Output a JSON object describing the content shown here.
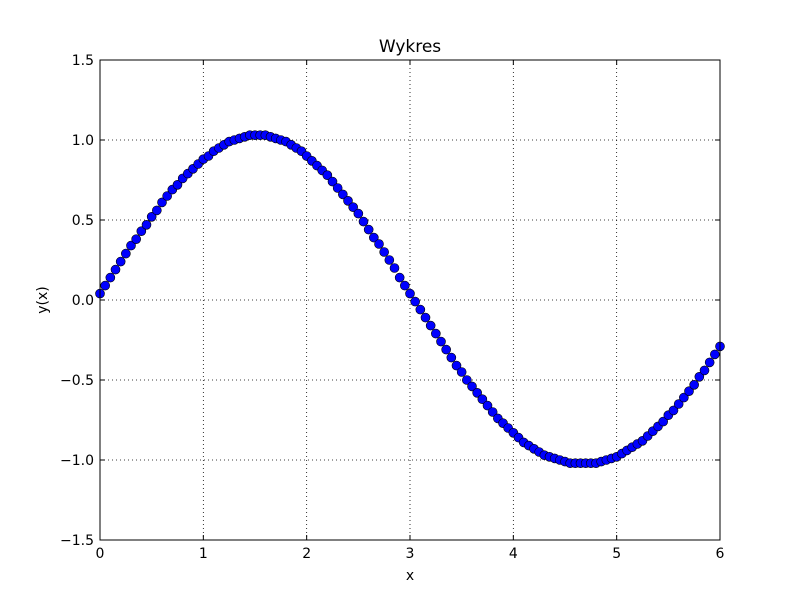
{
  "chart_data": {
    "type": "scatter",
    "title": "Wykres",
    "xlabel": "x",
    "ylabel": "y(x)",
    "xlim": [
      0,
      6
    ],
    "ylim": [
      -1.5,
      1.5
    ],
    "xticks": [
      0,
      1,
      2,
      3,
      4,
      5,
      6
    ],
    "xtick_labels": [
      "0",
      "1",
      "2",
      "3",
      "4",
      "5",
      "6"
    ],
    "yticks": [
      -1.5,
      -1.0,
      -0.5,
      0.0,
      0.5,
      1.0,
      1.5
    ],
    "ytick_labels": [
      "−1.5",
      "−1.0",
      "−0.5",
      "0.0",
      "0.5",
      "1.0",
      "1.5"
    ],
    "grid": true,
    "marker_color": "#0000ff",
    "marker_edge_color": "#000000",
    "series": [
      {
        "x": [
          0.0,
          0.05,
          0.1,
          0.15,
          0.2,
          0.25,
          0.3,
          0.35,
          0.4,
          0.45,
          0.5,
          0.55,
          0.6,
          0.65,
          0.7,
          0.75,
          0.8,
          0.85,
          0.9,
          0.95,
          1.0,
          1.05,
          1.1,
          1.15,
          1.2,
          1.25,
          1.3,
          1.35,
          1.4,
          1.45,
          1.5,
          1.55,
          1.6,
          1.65,
          1.7,
          1.75,
          1.8,
          1.85,
          1.9,
          1.95,
          2.0,
          2.05,
          2.1,
          2.15,
          2.2,
          2.25,
          2.3,
          2.35,
          2.4,
          2.45,
          2.5,
          2.55,
          2.6,
          2.65,
          2.7,
          2.75,
          2.8,
          2.85,
          2.9,
          2.95,
          3.0,
          3.05,
          3.1,
          3.15,
          3.2,
          3.25,
          3.3,
          3.35,
          3.4,
          3.45,
          3.5,
          3.55,
          3.6,
          3.65,
          3.7,
          3.75,
          3.8,
          3.85,
          3.9,
          3.95,
          4.0,
          4.05,
          4.1,
          4.15,
          4.2,
          4.25,
          4.3,
          4.35,
          4.4,
          4.45,
          4.5,
          4.55,
          4.6,
          4.65,
          4.7,
          4.75,
          4.8,
          4.85,
          4.9,
          4.95,
          5.0,
          5.05,
          5.1,
          5.15,
          5.2,
          5.25,
          5.3,
          5.35,
          5.4,
          5.45,
          5.5,
          5.55,
          5.6,
          5.65,
          5.7,
          5.75,
          5.8,
          5.85,
          5.9,
          5.95,
          6.0
        ],
        "y": [
          0.04,
          0.09,
          0.14,
          0.19,
          0.24,
          0.29,
          0.34,
          0.38,
          0.43,
          0.47,
          0.52,
          0.56,
          0.61,
          0.65,
          0.69,
          0.72,
          0.76,
          0.79,
          0.82,
          0.85,
          0.88,
          0.9,
          0.93,
          0.95,
          0.97,
          0.99,
          1.0,
          1.01,
          1.02,
          1.03,
          1.03,
          1.03,
          1.03,
          1.02,
          1.01,
          1.0,
          0.99,
          0.97,
          0.95,
          0.93,
          0.9,
          0.87,
          0.84,
          0.81,
          0.78,
          0.74,
          0.7,
          0.66,
          0.62,
          0.58,
          0.54,
          0.49,
          0.44,
          0.39,
          0.35,
          0.3,
          0.25,
          0.2,
          0.14,
          0.09,
          0.04,
          -0.01,
          -0.06,
          -0.11,
          -0.16,
          -0.21,
          -0.26,
          -0.31,
          -0.36,
          -0.41,
          -0.45,
          -0.5,
          -0.54,
          -0.58,
          -0.62,
          -0.66,
          -0.7,
          -0.74,
          -0.77,
          -0.8,
          -0.83,
          -0.86,
          -0.89,
          -0.91,
          -0.93,
          -0.95,
          -0.97,
          -0.98,
          -0.99,
          -1.0,
          -1.01,
          -1.02,
          -1.02,
          -1.02,
          -1.02,
          -1.02,
          -1.02,
          -1.01,
          -1.0,
          -0.99,
          -0.98,
          -0.96,
          -0.94,
          -0.92,
          -0.9,
          -0.88,
          -0.85,
          -0.82,
          -0.79,
          -0.76,
          -0.72,
          -0.69,
          -0.65,
          -0.61,
          -0.57,
          -0.53,
          -0.48,
          -0.44,
          -0.39,
          -0.34,
          -0.29
        ]
      }
    ]
  }
}
